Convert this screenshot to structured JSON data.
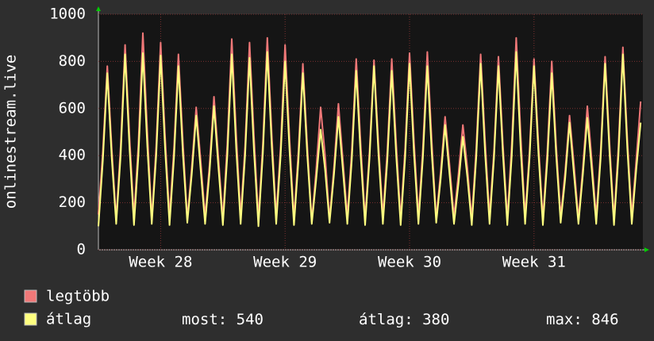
{
  "chart_data": {
    "type": "line",
    "y_label": "onlinestream.live",
    "xlim": [
      0,
      122.5
    ],
    "xticks": [
      {
        "value": 14,
        "label": "Week 28"
      },
      {
        "value": 42,
        "label": "Week 29"
      },
      {
        "value": 70,
        "label": "Week 30"
      },
      {
        "value": 98,
        "label": "Week 31"
      }
    ],
    "ylim": [
      0,
      1000
    ],
    "yticks": [
      0,
      200,
      400,
      600,
      800,
      1000
    ],
    "grid": true,
    "series": [
      {
        "name": "legtöbb",
        "color": "#f07878",
        "values": [
          150,
          420,
          780,
          430,
          130,
          440,
          870,
          480,
          140,
          450,
          920,
          500,
          130,
          440,
          880,
          480,
          140,
          430,
          830,
          460,
          130,
          350,
          605,
          380,
          140,
          360,
          650,
          390,
          130,
          450,
          895,
          490,
          140,
          440,
          880,
          480,
          130,
          450,
          900,
          490,
          140,
          440,
          870,
          470,
          130,
          420,
          790,
          440,
          120,
          340,
          605,
          400,
          130,
          350,
          620,
          380,
          140,
          420,
          810,
          450,
          130,
          420,
          805,
          450,
          140,
          420,
          810,
          450,
          130,
          430,
          835,
          460,
          140,
          430,
          840,
          460,
          130,
          330,
          565,
          360,
          140,
          320,
          530,
          350,
          130,
          430,
          830,
          460,
          140,
          420,
          820,
          450,
          130,
          450,
          900,
          490,
          140,
          420,
          810,
          450,
          130,
          420,
          800,
          440,
          140,
          330,
          570,
          360,
          130,
          350,
          610,
          380,
          140,
          420,
          820,
          450,
          130,
          440,
          860,
          470,
          140,
          380,
          630
        ]
      },
      {
        "name": "átlag",
        "color": "#ffff80",
        "values": [
          100,
          380,
          750,
          390,
          110,
          400,
          830,
          430,
          105,
          400,
          835,
          440,
          110,
          400,
          825,
          430,
          105,
          390,
          780,
          410,
          115,
          320,
          570,
          340,
          110,
          330,
          610,
          350,
          105,
          400,
          830,
          430,
          110,
          400,
          815,
          420,
          100,
          410,
          840,
          440,
          110,
          400,
          800,
          420,
          105,
          380,
          750,
          400,
          110,
          300,
          510,
          340,
          115,
          320,
          565,
          340,
          110,
          380,
          760,
          400,
          105,
          390,
          780,
          410,
          110,
          380,
          760,
          400,
          105,
          390,
          790,
          410,
          110,
          390,
          780,
          410,
          115,
          300,
          530,
          320,
          110,
          280,
          480,
          310,
          105,
          390,
          790,
          410,
          110,
          390,
          780,
          410,
          105,
          400,
          840,
          430,
          110,
          390,
          780,
          410,
          105,
          380,
          750,
          400,
          115,
          300,
          540,
          320,
          110,
          320,
          560,
          340,
          110,
          390,
          790,
          410,
          105,
          400,
          830,
          430,
          110,
          340,
          540
        ]
      }
    ],
    "stats": [
      {
        "label": "most:",
        "value": 540
      },
      {
        "label": "átlag:",
        "value": 380
      },
      {
        "label": "max:",
        "value": 846
      }
    ]
  }
}
